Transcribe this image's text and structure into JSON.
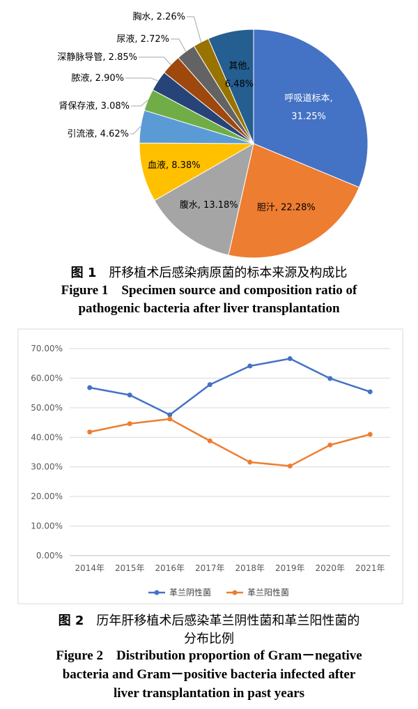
{
  "chart_data": [
    {
      "type": "pie",
      "slices": [
        {
          "label": "呼吸道标本",
          "value": 31.25,
          "value_text": "31.25%",
          "color": "#4472c4"
        },
        {
          "label": "胆汁",
          "value": 22.28,
          "value_text": "22.28%",
          "color": "#ed7d31"
        },
        {
          "label": "腹水",
          "value": 13.18,
          "value_text": "13.18%",
          "color": "#a5a5a5"
        },
        {
          "label": "血液",
          "value": 8.38,
          "value_text": "8.38%",
          "color": "#ffc000"
        },
        {
          "label": "引流液",
          "value": 4.62,
          "value_text": "4.62%",
          "color": "#5b9bd5"
        },
        {
          "label": "肾保存液",
          "value": 3.08,
          "value_text": "3.08%",
          "color": "#70ad47"
        },
        {
          "label": "脓液",
          "value": 2.9,
          "value_text": "2.90%",
          "color": "#264478"
        },
        {
          "label": "深静脉导管",
          "value": 2.85,
          "value_text": "2.85%",
          "color": "#9e480e"
        },
        {
          "label": "尿液",
          "value": 2.72,
          "value_text": "2.72%",
          "color": "#636363"
        },
        {
          "label": "胸水",
          "value": 2.26,
          "value_text": "2.26%",
          "color": "#997300"
        },
        {
          "label": "其他",
          "value": 6.48,
          "value_text": "6.48%",
          "color": "#255e91"
        }
      ]
    },
    {
      "type": "line",
      "categories": [
        "2014年",
        "2015年",
        "2016年",
        "2017年",
        "2018年",
        "2019年",
        "2020年",
        "2021年"
      ],
      "ylim": [
        0,
        70
      ],
      "yticks": [
        "0.00%",
        "10.00%",
        "20.00%",
        "30.00%",
        "40.00%",
        "50.00%",
        "60.00%",
        "70.00%"
      ],
      "grid": true,
      "legend_position": "bottom",
      "series": [
        {
          "name": "革兰阴性菌",
          "color": "#4472c4",
          "values": [
            56.8,
            54.3,
            47.6,
            57.8,
            64.1,
            66.6,
            59.9,
            55.4
          ]
        },
        {
          "name": "革兰阳性菌",
          "color": "#ed7d31",
          "values": [
            41.8,
            44.6,
            46.2,
            38.8,
            31.6,
            30.3,
            37.4,
            41.0
          ]
        }
      ]
    }
  ],
  "captions": {
    "fig1_num_zh": "图 1",
    "fig1_zh": "肝移植术后感染病原菌的标本来源及构成比",
    "fig1_en_1": "Figure 1    Specimen source and composition ratio of",
    "fig1_en_2": "pathogenic bacteria after liver transplantation",
    "fig2_num_zh": "图 2",
    "fig2_zh_1": "历年肝移植术后感染革兰阴性菌和革兰阳性菌的",
    "fig2_zh_2": "分布比例",
    "fig2_en_1": "Figure 2    Distribution proportion of Gram－negative",
    "fig2_en_2": "bacteria and Gram－positive bacteria infected after",
    "fig2_en_3": "liver transplantation in past years"
  }
}
